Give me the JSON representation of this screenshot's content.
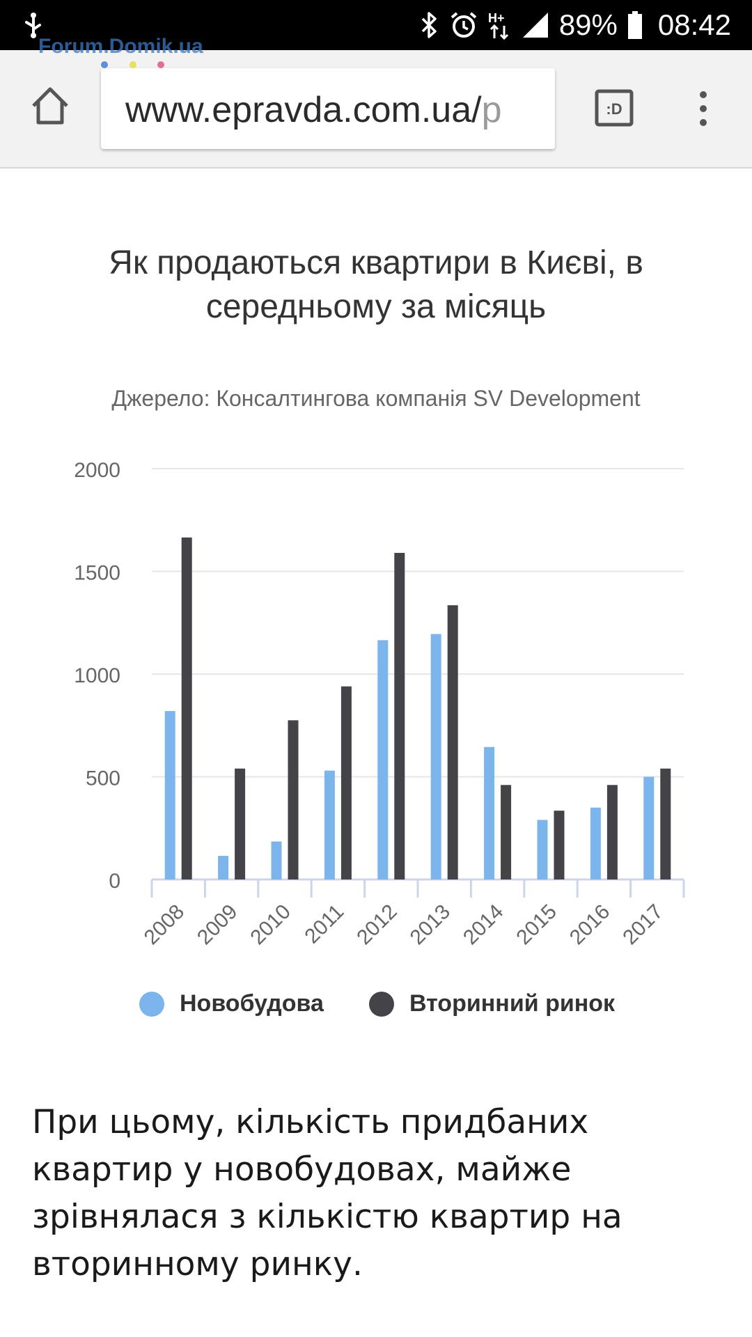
{
  "status_bar": {
    "battery": "89%",
    "time": "08:42",
    "icons": [
      "usb-icon",
      "bluetooth-icon",
      "alarm-icon",
      "hplus-data-icon",
      "signal-icon",
      "battery-icon"
    ],
    "network_label": "H+"
  },
  "watermark": "Forum.Domik.ua",
  "browser": {
    "url_main": "www.epravda.com.ua/",
    "url_tail": "p",
    "tabs_label": ":D",
    "icons": [
      "home-icon",
      "tabs-icon",
      "more-vert-icon"
    ]
  },
  "chart_data": {
    "type": "bar",
    "title": "Як продаються квартири в Києві, в середньому за місяць",
    "subtitle": "Джерело: Консалтингова компанія SV Development",
    "xlabel": "",
    "ylabel": "",
    "ylim": [
      0,
      2000
    ],
    "yticks": [
      0,
      500,
      1000,
      1500,
      2000
    ],
    "grid": true,
    "legend_position": "bottom",
    "categories": [
      "2008",
      "2009",
      "2010",
      "2011",
      "2012",
      "2013",
      "2014",
      "2015",
      "2016",
      "2017"
    ],
    "series": [
      {
        "name": "Новобудова",
        "color": "#7cb5ec",
        "values": [
          820,
          115,
          185,
          530,
          1165,
          1195,
          645,
          290,
          350,
          500
        ]
      },
      {
        "name": "Вторинний ринок",
        "color": "#434348",
        "values": [
          1665,
          540,
          775,
          940,
          1590,
          1335,
          460,
          335,
          460,
          540
        ]
      }
    ]
  },
  "article": {
    "text": "При цьому, кількість придбаних квартир у новобудовах, майже зрівнялася з кількістю квартир на вторинному ринку."
  }
}
